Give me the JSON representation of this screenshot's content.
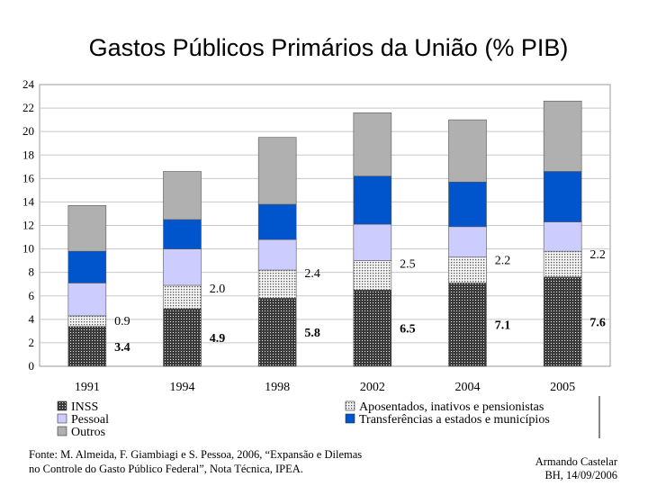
{
  "chart_data": {
    "type": "bar",
    "stacked": true,
    "title": "Gastos Públicos Primários da União (% PIB)",
    "categories": [
      "1991",
      "1994",
      "1998",
      "2002",
      "2004",
      "2005"
    ],
    "ylim": [
      0,
      24
    ],
    "yticks": [
      "0",
      "2",
      "4",
      "6",
      "8",
      "10",
      "12",
      "14",
      "16",
      "18",
      "20",
      "22",
      "24"
    ],
    "grid": true,
    "legend_position": "bottom",
    "series": [
      {
        "name": "INSS",
        "values": [
          3.4,
          4.9,
          5.8,
          6.5,
          7.1,
          7.6
        ],
        "color": "#222222",
        "pattern": "dark-dots",
        "labels": [
          "3.4",
          "4.9",
          "5.8",
          "6.5",
          "7.1",
          "7.6"
        ]
      },
      {
        "name": "Aposentados, inativos e pensionistas",
        "values": [
          0.9,
          2.0,
          2.4,
          2.5,
          2.2,
          2.2
        ],
        "color": "#d4d4d4",
        "pattern": "light-dots",
        "labels": [
          "0.9",
          "2.0",
          "2.4",
          "2.5",
          "2.2",
          "2.2"
        ]
      },
      {
        "name": "Pessoal",
        "values": [
          2.8,
          3.1,
          2.6,
          3.1,
          2.6,
          2.5
        ],
        "color": "#ccccff"
      },
      {
        "name": "Transferências a estados e municípios",
        "values": [
          2.7,
          2.5,
          3.0,
          4.1,
          3.8,
          4.3
        ],
        "color": "#0055cc"
      },
      {
        "name": "Outros",
        "values": [
          3.9,
          4.1,
          5.7,
          5.4,
          5.3,
          6.0
        ],
        "color": "#b0b0b0"
      }
    ]
  },
  "footer": {
    "source_line1": "Fonte: M. Almeida, F. Giambiagi e S. Pessoa, 2006, “Expansão e Dilemas",
    "source_line2": "no Controle do Gasto Público Federal”, Nota Técnica, IPEA.",
    "author": "Armando Castelar",
    "place_date": "BH, 14/09/2006"
  }
}
